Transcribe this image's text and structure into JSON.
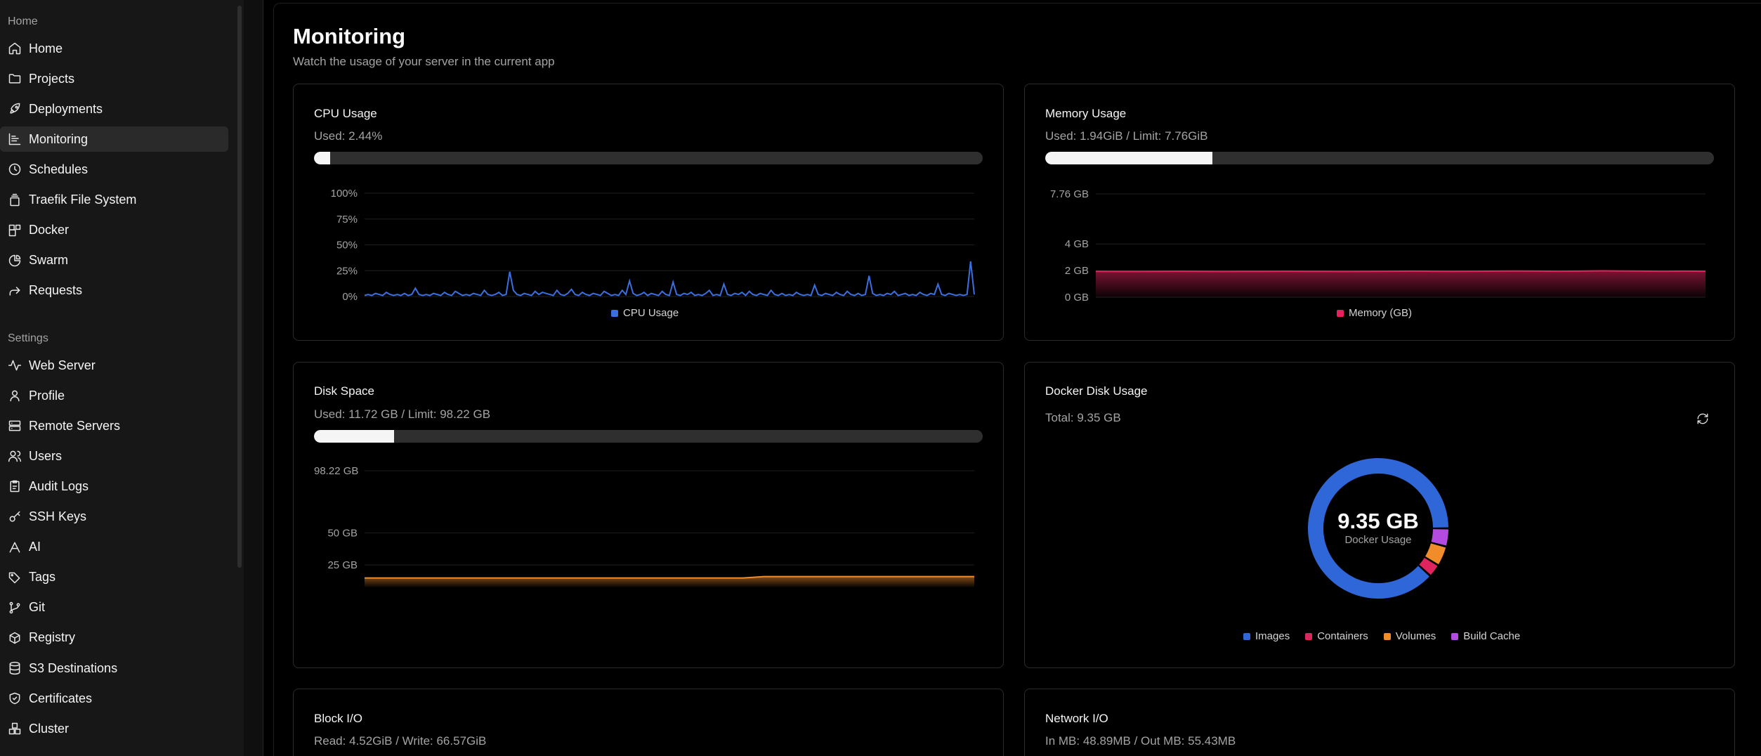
{
  "sidebar": {
    "home_group_label": "Home",
    "settings_group_label": "Settings",
    "home_items": [
      {
        "label": "Home",
        "icon": "home-icon"
      },
      {
        "label": "Projects",
        "icon": "folder-icon"
      },
      {
        "label": "Deployments",
        "icon": "rocket-icon"
      },
      {
        "label": "Monitoring",
        "icon": "chart-icon"
      },
      {
        "label": "Schedules",
        "icon": "clock-icon"
      },
      {
        "label": "Traefik File System",
        "icon": "file-stack-icon"
      },
      {
        "label": "Docker",
        "icon": "blocks-icon"
      },
      {
        "label": "Swarm",
        "icon": "pie-icon"
      },
      {
        "label": "Requests",
        "icon": "forward-icon"
      }
    ],
    "settings_items": [
      {
        "label": "Web Server",
        "icon": "activity-icon"
      },
      {
        "label": "Profile",
        "icon": "user-icon"
      },
      {
        "label": "Remote Servers",
        "icon": "server-icon"
      },
      {
        "label": "Users",
        "icon": "users-icon"
      },
      {
        "label": "Audit Logs",
        "icon": "clipboard-icon"
      },
      {
        "label": "SSH Keys",
        "icon": "key-icon"
      },
      {
        "label": "AI",
        "icon": "bot-icon"
      },
      {
        "label": "Tags",
        "icon": "tags-icon"
      },
      {
        "label": "Git",
        "icon": "git-branch-icon"
      },
      {
        "label": "Registry",
        "icon": "package-icon"
      },
      {
        "label": "S3 Destinations",
        "icon": "database-icon"
      },
      {
        "label": "Certificates",
        "icon": "shield-check-icon"
      },
      {
        "label": "Cluster",
        "icon": "boxes-icon"
      }
    ],
    "active_item": "Monitoring"
  },
  "page": {
    "title": "Monitoring",
    "subtitle": "Watch the usage of your server in the current app"
  },
  "cpu": {
    "title": "CPU Usage",
    "used_text": "Used: 2.44%",
    "used_fraction": 0.0244
  },
  "memory": {
    "title": "Memory Usage",
    "used_text": "Used: 1.94GiB / Limit: 7.76GiB",
    "used_fraction": 0.25
  },
  "disk": {
    "title": "Disk Space",
    "used_text": "Used: 11.72 GB / Limit: 98.22 GB",
    "used_fraction": 0.1193
  },
  "docker_disk": {
    "title": "Docker Disk Usage",
    "total_text": "Total: 9.35 GB",
    "center_value": "9.35 GB",
    "center_label": "Docker Usage",
    "refresh_icon": "refresh-icon"
  },
  "block_io": {
    "title": "Block I/O",
    "value_text": "Read: 4.52GiB / Write: 66.57GiB"
  },
  "network_io": {
    "title": "Network I/O",
    "value_text": "In MB: 48.89MB / Out MB: 55.43MB"
  },
  "colors": {
    "cpu_line": "#3b6fe0",
    "memory_area": "#e0245e",
    "disk_area": "#f08c2a",
    "images": "#2f66d8",
    "containers": "#e0245e",
    "volumes": "#f08c2a",
    "build_cache": "#b44be0"
  },
  "chart_data": [
    {
      "type": "line",
      "title": "CPU Usage",
      "y_ticks": [
        "100%",
        "75%",
        "50%",
        "25%",
        "0%"
      ],
      "ylim": [
        0,
        100
      ],
      "legend": [
        "CPU Usage"
      ],
      "series": [
        {
          "name": "CPU Usage",
          "values": [
            1,
            2,
            1,
            3,
            2,
            1,
            4,
            2,
            1,
            2,
            1,
            3,
            1,
            2,
            8,
            2,
            1,
            2,
            1,
            3,
            2,
            1,
            4,
            2,
            1,
            5,
            3,
            1,
            2,
            1,
            3,
            2,
            1,
            6,
            2,
            1,
            2,
            4,
            1,
            2,
            24,
            6,
            2,
            1,
            3,
            2,
            1,
            5,
            2,
            4,
            3,
            2,
            1,
            6,
            2,
            1,
            3,
            7,
            2,
            1,
            4,
            2,
            1,
            3,
            2,
            1,
            5,
            3,
            1,
            2,
            1,
            6,
            2,
            15,
            3,
            1,
            2,
            4,
            1,
            3,
            2,
            1,
            5,
            2,
            1,
            14,
            2,
            1,
            3,
            2,
            4,
            1,
            2,
            1,
            3,
            6,
            1,
            2,
            1,
            12,
            2,
            1,
            3,
            2,
            4,
            1,
            5,
            2,
            1,
            3,
            2,
            1,
            6,
            2,
            1,
            3,
            1,
            2,
            1,
            4,
            2,
            1,
            2,
            1,
            11,
            2,
            1,
            3,
            2,
            1,
            4,
            2,
            1,
            5,
            2,
            1,
            3,
            1,
            2,
            20,
            3,
            1,
            2,
            1,
            3,
            2,
            5,
            1,
            2,
            3,
            1,
            2,
            1,
            4,
            2,
            1,
            3,
            2,
            12,
            2,
            1,
            3,
            2,
            1,
            2,
            1,
            2,
            34,
            2
          ]
        }
      ]
    },
    {
      "type": "area",
      "title": "Memory Usage",
      "y_ticks": [
        "7.76 GB",
        "4 GB",
        "2 GB",
        "0 GB"
      ],
      "ylim": [
        0,
        7.76
      ],
      "legend": [
        "Memory (GB)"
      ],
      "series": [
        {
          "name": "Memory (GB)",
          "values": [
            1.94,
            1.93,
            1.93,
            1.94,
            1.95,
            1.94,
            1.93,
            1.94,
            1.94,
            1.95,
            1.94,
            1.94,
            1.93,
            1.94,
            1.95,
            1.96,
            1.95,
            1.94,
            1.95,
            1.96,
            1.97,
            1.96,
            1.95,
            1.96,
            1.98,
            1.97,
            1.96,
            1.95,
            1.96,
            1.95
          ]
        }
      ]
    },
    {
      "type": "area",
      "title": "Disk Space",
      "y_ticks": [
        "98.22 GB",
        "50 GB",
        "25 GB"
      ],
      "ylim": [
        0,
        98.22
      ],
      "series": [
        {
          "name": "Disk",
          "values": [
            10.6,
            10.6,
            10.6,
            10.6,
            10.6,
            10.6,
            10.6,
            10.6,
            10.6,
            10.6,
            10.6,
            10.6,
            10.6,
            10.6,
            10.6,
            10.6,
            10.6,
            10.6,
            10.6,
            11.7,
            11.7,
            11.7,
            11.7,
            11.7,
            11.7,
            11.7,
            11.7,
            11.7,
            11.7,
            11.7
          ]
        }
      ]
    },
    {
      "type": "pie",
      "title": "Docker Disk Usage",
      "categories": [
        "Images",
        "Containers",
        "Volumes",
        "Build Cache"
      ],
      "values": [
        8.25,
        0.28,
        0.43,
        0.39
      ]
    }
  ]
}
